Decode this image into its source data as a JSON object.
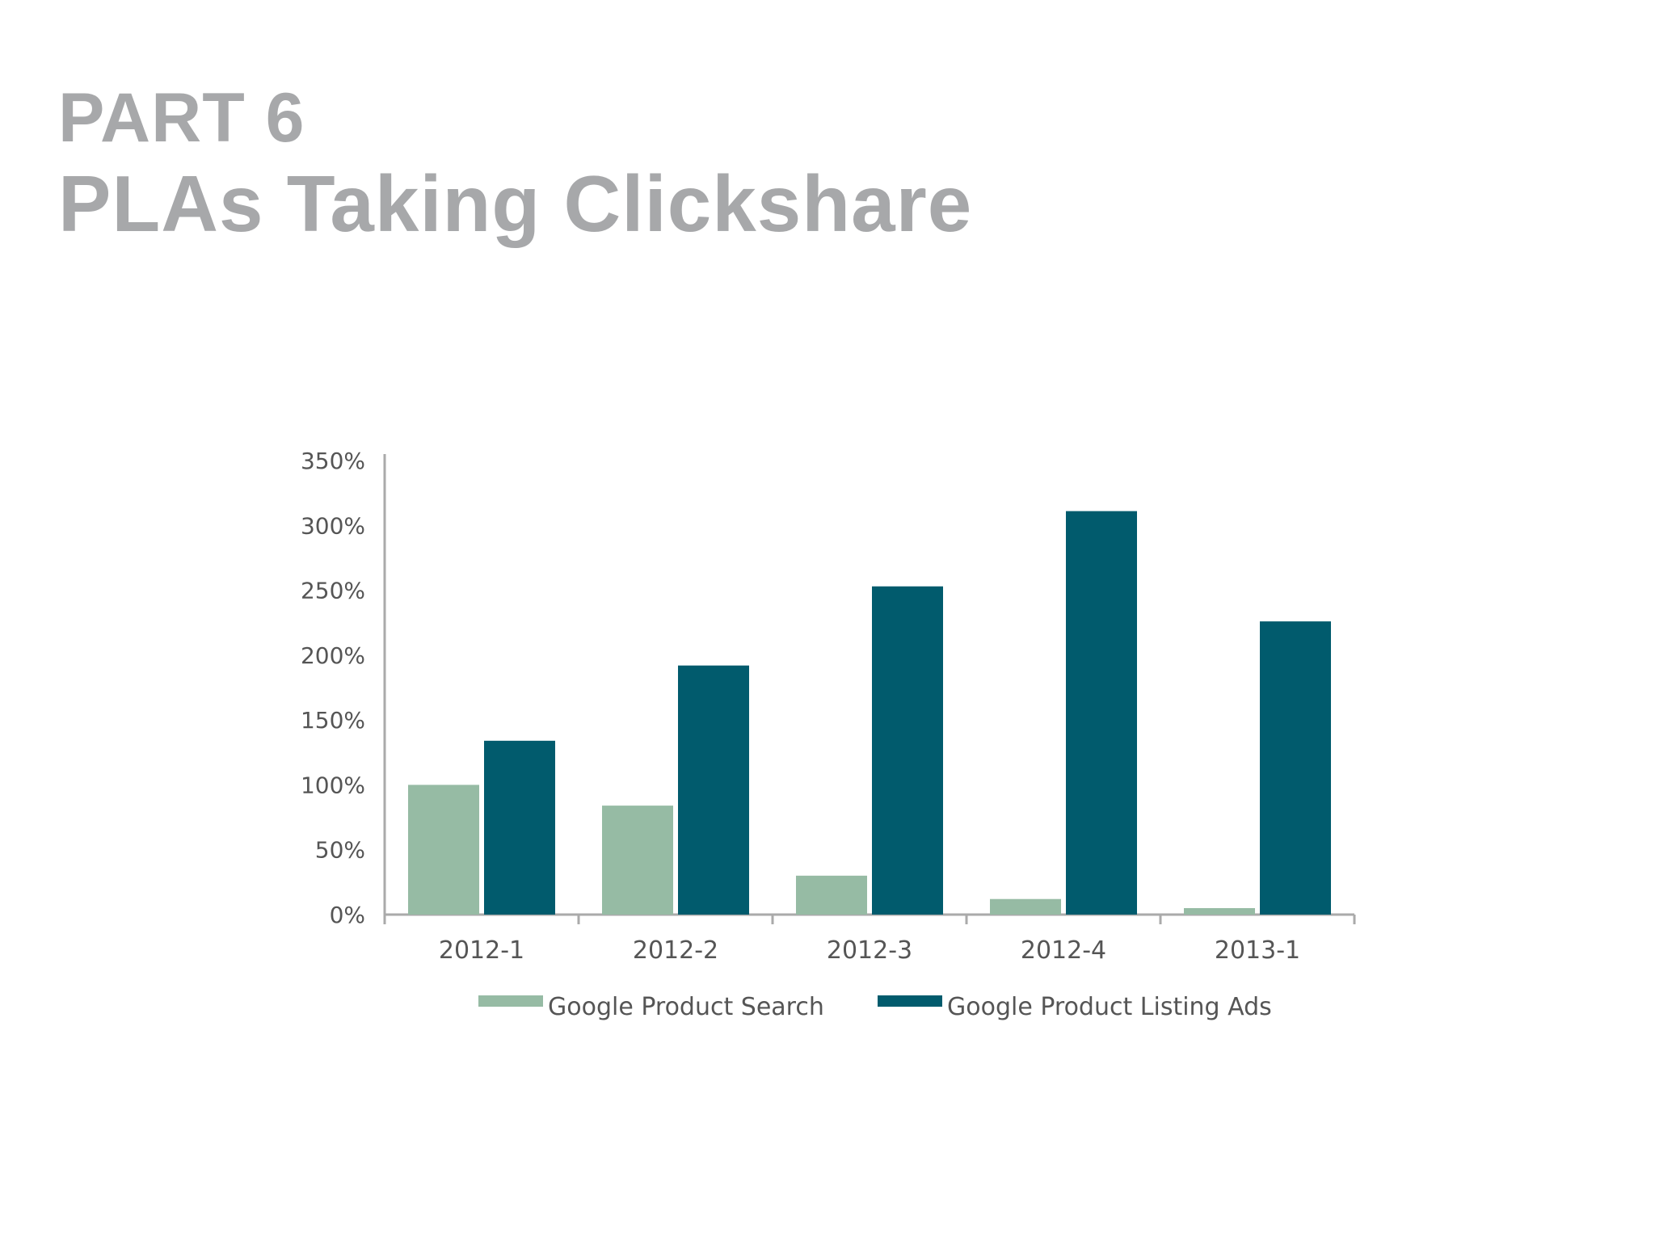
{
  "header": {
    "part": "PART 6",
    "title": "PLAs Taking Clickshare"
  },
  "colors": {
    "header_text": "#a7a8aa",
    "series_search": "#96bba4",
    "series_listing": "#015b6d",
    "axis": "#aaaaaa",
    "tick_text": "#555555"
  },
  "chart_data": {
    "type": "bar",
    "title": "",
    "xlabel": "",
    "ylabel": "",
    "categories": [
      "2012-1",
      "2012-2",
      "2012-3",
      "2012-4",
      "2013-1"
    ],
    "ylim": [
      0,
      350
    ],
    "yticks": [
      0,
      50,
      100,
      150,
      200,
      250,
      300,
      350
    ],
    "ytick_labels": [
      "0%",
      "50%",
      "100%",
      "150%",
      "200%",
      "250%",
      "300%",
      "350%"
    ],
    "grid": false,
    "legend": "bottom",
    "series": [
      {
        "name": "Google Product Search",
        "values": [
          100,
          84,
          30,
          12,
          5
        ]
      },
      {
        "name": "Google Product Listing Ads",
        "values": [
          134,
          192,
          253,
          311,
          226
        ]
      }
    ]
  }
}
